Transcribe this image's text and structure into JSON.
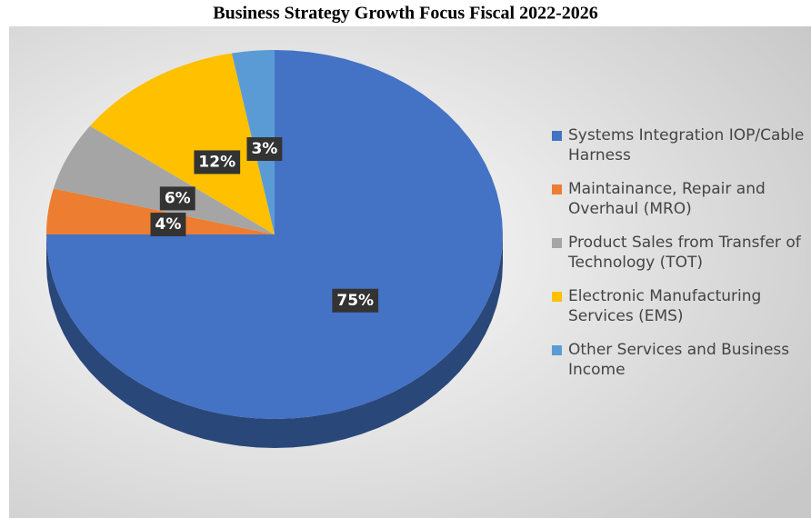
{
  "chart_data": {
    "type": "pie",
    "title": "Business Strategy Growth Focus Fiscal 2022-2026",
    "categories": [
      "Systems Integration IOP/Cable Harness",
      "Maintainance, Repair and Overhaul (MRO)",
      "Product Sales from Transfer of Technology (TOT)",
      "Electronic Manufacturing Services (EMS)",
      "Other Services and Business Income"
    ],
    "values": [
      75,
      4,
      6,
      12,
      3
    ],
    "value_labels": [
      "75%",
      "4%",
      "6%",
      "12%",
      "3%"
    ],
    "colors": [
      "#4472c4",
      "#ed7d31",
      "#a5a5a5",
      "#ffc000",
      "#5b9bd5"
    ],
    "legend": "right"
  }
}
